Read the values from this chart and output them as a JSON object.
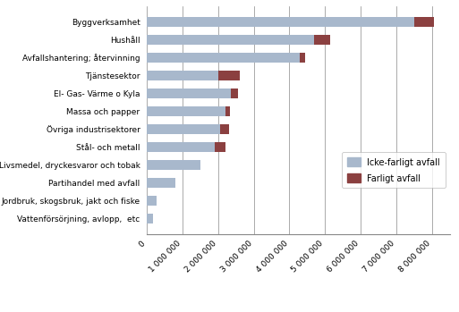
{
  "categories": [
    "Vattenförsörjning, avlopp,  etc",
    "Jordbruk, skogsbruk, jakt och fiske",
    "Partihandel med avfall",
    "Livsmedel, dryckesvaror och tobak",
    "Stål- och metall",
    "Övriga industrisektorer",
    "Massa och papper",
    "El- Gas- Värme o Kyla",
    "Tjänstesektor",
    "Avfallshantering; återvinning",
    "Hushåll",
    "Byggverksamhet"
  ],
  "non_hazardous": [
    180000,
    270000,
    800000,
    1500000,
    1900000,
    2050000,
    2200000,
    2350000,
    2000000,
    4300000,
    4700000,
    7500000
  ],
  "hazardous": [
    0,
    0,
    0,
    0,
    300000,
    250000,
    130000,
    200000,
    600000,
    150000,
    450000,
    550000
  ],
  "non_hazardous_color": "#a8b8cc",
  "hazardous_color": "#8b4040",
  "legend_non_hazardous": "Icke-farligt avfall",
  "legend_hazardous": "Farligt avfall",
  "xlim": [
    0,
    8500000
  ],
  "xticks": [
    0,
    1000000,
    2000000,
    3000000,
    4000000,
    5000000,
    6000000,
    7000000,
    8000000
  ],
  "xtick_labels": [
    "0",
    "1 000 000",
    "2 000 000",
    "3 000 000",
    "4 000 000",
    "5 000 000",
    "6 000 000",
    "7 000 000",
    "8 000 000"
  ],
  "bar_height": 0.55,
  "label_fontsize": 6.5,
  "tick_fontsize": 6.5,
  "background_color": "#ffffff"
}
